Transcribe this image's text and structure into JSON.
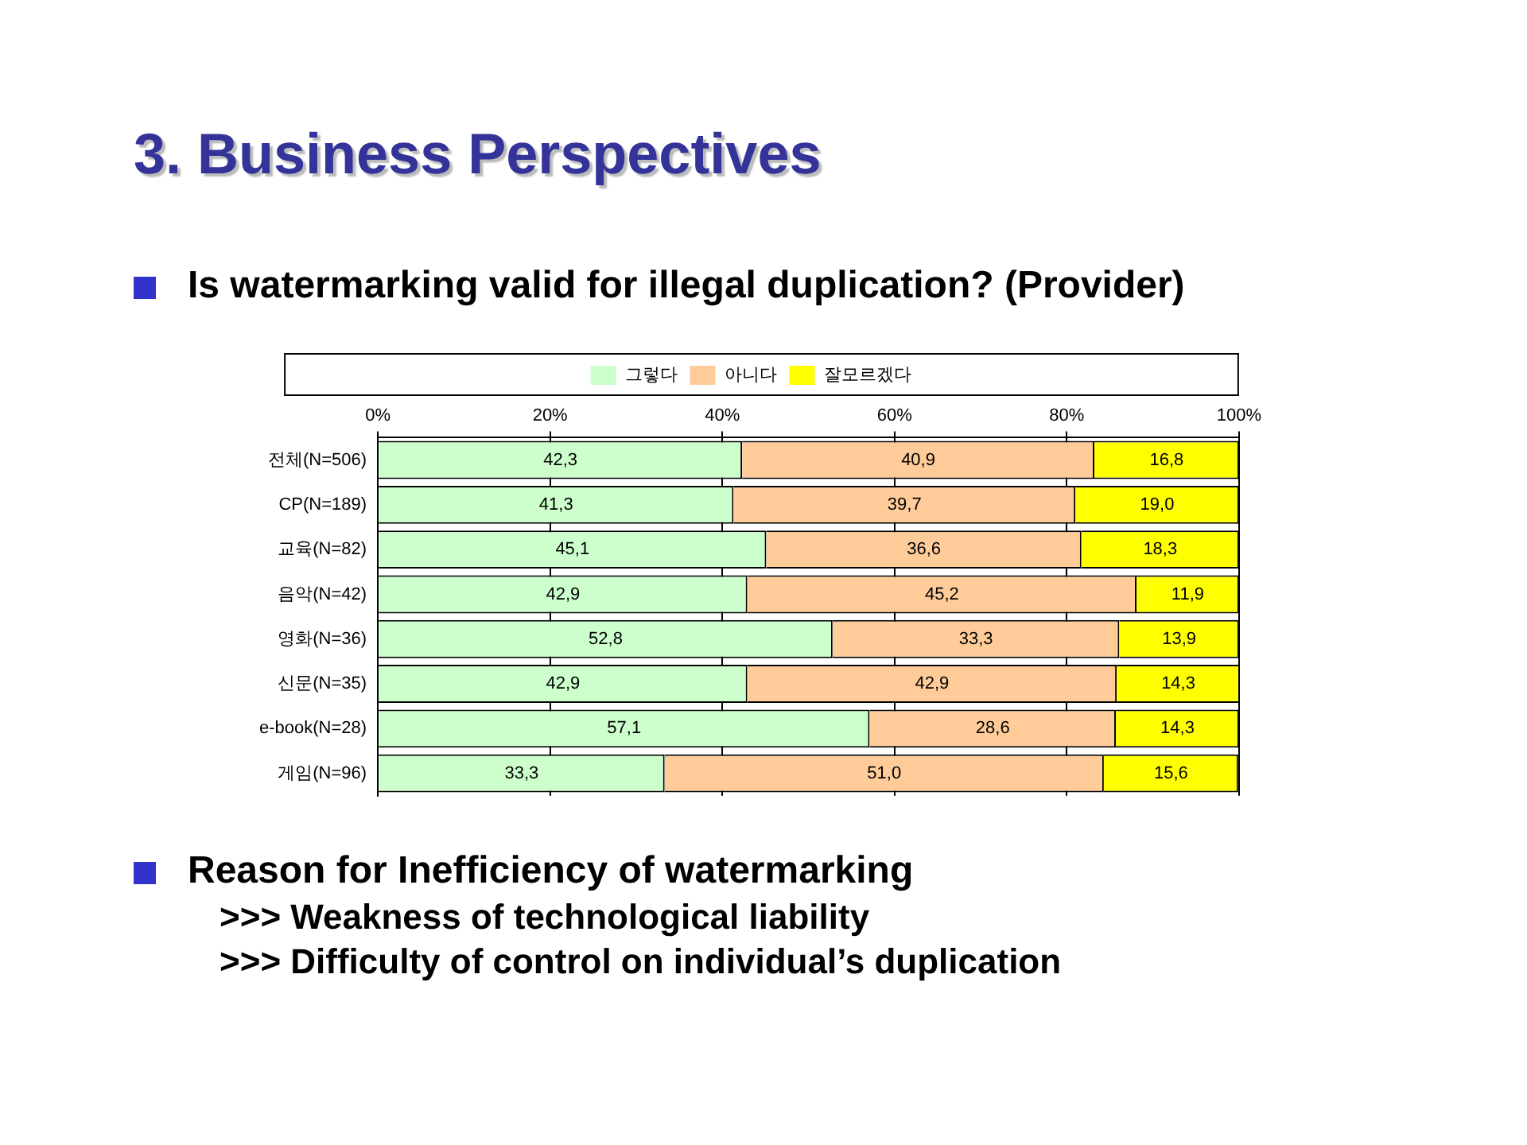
{
  "chart_data": {
    "type": "bar",
    "orientation": "horizontal",
    "stacked": true,
    "title": "3. Business Perspectives",
    "subtitle": "Is watermarking valid for illegal duplication? (Provider)",
    "annotations": [
      "Reason for Inefficiency of watermarking",
      ">>> Weakness of technological liability",
      ">>> Difficulty of control on individual’s duplication"
    ],
    "categories": [
      "전체(N=506)",
      "CP(N=189)",
      "교육(N=82)",
      "음악(N=42)",
      "영화(N=36)",
      "신문(N=35)",
      "e-book(N=28)",
      "게임(N=96)"
    ],
    "series": [
      {
        "name": "그렇다",
        "color": "#ccffcc",
        "values": [
          42.3,
          41.3,
          45.1,
          42.9,
          52.8,
          42.9,
          57.1,
          33.3
        ],
        "value_labels": [
          "42,3",
          "41,3",
          "45,1",
          "42,9",
          "52,8",
          "42,9",
          "57,1",
          "33,3"
        ]
      },
      {
        "name": "아니다",
        "color": "#ffcc99",
        "values": [
          40.9,
          39.7,
          36.6,
          45.2,
          33.3,
          42.9,
          28.6,
          51.0
        ],
        "value_labels": [
          "40,9",
          "39,7",
          "36,6",
          "45,2",
          "33,3",
          "42,9",
          "28,6",
          "51,0"
        ]
      },
      {
        "name": "잘모르겠다",
        "color": "#ffff00",
        "values": [
          16.8,
          19.0,
          18.3,
          11.9,
          13.9,
          14.3,
          14.3,
          15.6
        ],
        "value_labels": [
          "16,8",
          "19,0",
          "18,3",
          "11,9",
          "13,9",
          "14,3",
          "14,3",
          "15,6"
        ]
      }
    ],
    "xlim": [
      0,
      100
    ],
    "xticks": [
      {
        "value": 0,
        "label": "0%"
      },
      {
        "value": 20,
        "label": "20%"
      },
      {
        "value": 40,
        "label": "40%"
      },
      {
        "value": 60,
        "label": "60%"
      },
      {
        "value": 80,
        "label": "80%"
      },
      {
        "value": 100,
        "label": "100%"
      }
    ],
    "grid": "x",
    "legend": "top"
  }
}
